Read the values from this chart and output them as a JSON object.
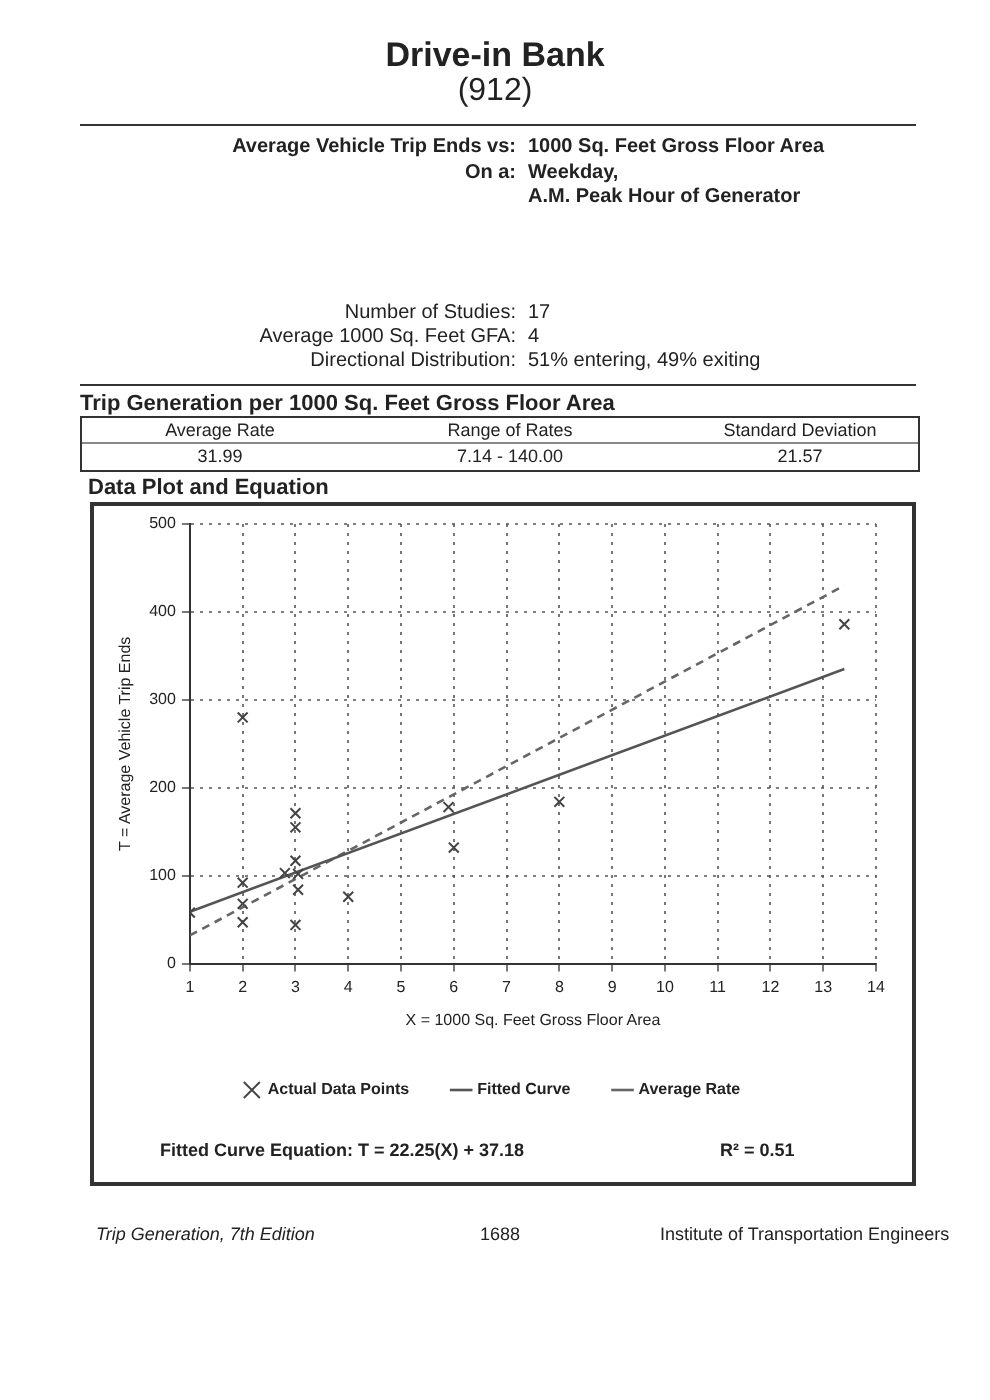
{
  "chart_data": {
    "type": "scatter",
    "title": "Drive-in Bank",
    "subtitle": "(912)",
    "xlabel": "X = 1000 Sq. Feet Gross Floor Area",
    "ylabel": "T = Average Vehicle Trip Ends",
    "xlim": [
      1,
      14
    ],
    "xticks": [
      1,
      2,
      3,
      4,
      5,
      6,
      7,
      8,
      9,
      10,
      11,
      12,
      13,
      14
    ],
    "ylim": [
      0,
      500
    ],
    "yticks": [
      0,
      100,
      200,
      300,
      400,
      500
    ],
    "grid": true,
    "legend": "bottom",
    "series": [
      {
        "name": "Actual Data Points",
        "type": "scatter",
        "marker": "cross",
        "color": "#444444",
        "x": [
          1,
          2,
          2,
          2,
          2,
          2.8,
          3,
          3,
          3,
          3.05,
          3.05,
          3,
          4,
          5.9,
          6,
          8,
          13.4
        ],
        "values": [
          58,
          280,
          92,
          68,
          47,
          103,
          171,
          155,
          117,
          102,
          84,
          44,
          76,
          178,
          132,
          184,
          386
        ]
      },
      {
        "name": "Fitted Curve",
        "type": "line",
        "marker": "none",
        "line_style": "solid",
        "color": "#555555",
        "x": [
          1,
          13.4
        ],
        "values": [
          59,
          335
        ]
      },
      {
        "name": "Average Rate",
        "type": "line",
        "marker": "none",
        "line_style": "dashed",
        "color": "#666666",
        "x": [
          1,
          13.4
        ],
        "values": [
          32,
          430
        ]
      }
    ],
    "annotations": [
      "Average Vehicle Trip Ends vs:",
      "1000 Sq. Feet Gross Floor Area",
      "On a:",
      "Weekday,",
      "A.M. Peak Hour of Generator",
      "Number of Studies:",
      "17",
      "Average 1000 Sq. Feet GFA:",
      "4",
      "Directional Distribution:",
      "51% entering, 49% exiting",
      "Trip Generation per 1000 Sq. Feet Gross Floor Area",
      "Average Rate",
      "Range of Rates",
      "Standard Deviation",
      "31.99",
      "7.14 - 140.00",
      "21.57",
      "Data Plot and Equation",
      "Fitted Curve Equation: T = 22.25(X) + 37.18",
      "R² = 0.51",
      "Trip Generation, 7th Edition",
      "1688",
      "Institute of Transportation Engineers"
    ]
  }
}
